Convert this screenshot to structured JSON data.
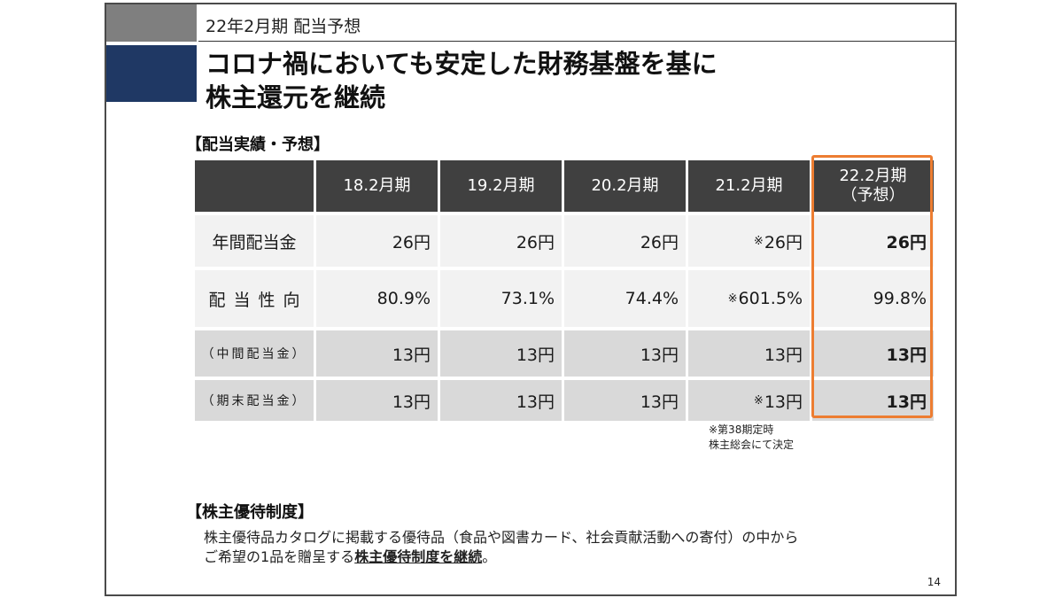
{
  "header": {
    "subtitle": "22年2月期 配当予想"
  },
  "title": {
    "line1": "コロナ禍においても安定した財務基盤を基に",
    "line2": "株主還元を継続"
  },
  "dividend_section": {
    "heading": "【配当実績・予想】",
    "column_headers": [
      "18.2月期",
      "19.2月期",
      "20.2月期",
      "21.2月期",
      "22.2月期",
      "（予想）"
    ],
    "rows": [
      {
        "label": "年間配当金",
        "values": [
          "26円",
          "26円",
          "26円",
          "26円",
          "26円"
        ],
        "marked_value": "※"
      },
      {
        "label": "配当性向",
        "values": [
          "80.9%",
          "73.1%",
          "74.4%",
          "601.5%",
          "99.8%"
        ],
        "marked_value": "※"
      },
      {
        "label": "（中間配当金）",
        "values": [
          "13円",
          "13円",
          "13円",
          "13円",
          "13円"
        ]
      },
      {
        "label": "（期末配当金）",
        "values": [
          "13円",
          "13円",
          "13円",
          "13円",
          "13円"
        ],
        "marked_value": "※"
      }
    ],
    "highlight_color": "#ed7d31",
    "note": {
      "line1": "※第38期定時",
      "line2": "株主総会にて決定"
    }
  },
  "benefit_section": {
    "heading": "【株主優待制度】",
    "line1": "株主優待品カタログに掲載する優待品（食品や図書カード、社会貢献活動への寄付）の中から",
    "line2_prefix": "ご希望の1品を贈呈する",
    "line2_emphasis": "株主優待制度を継続",
    "line2_suffix": "。"
  },
  "page_number": "14"
}
